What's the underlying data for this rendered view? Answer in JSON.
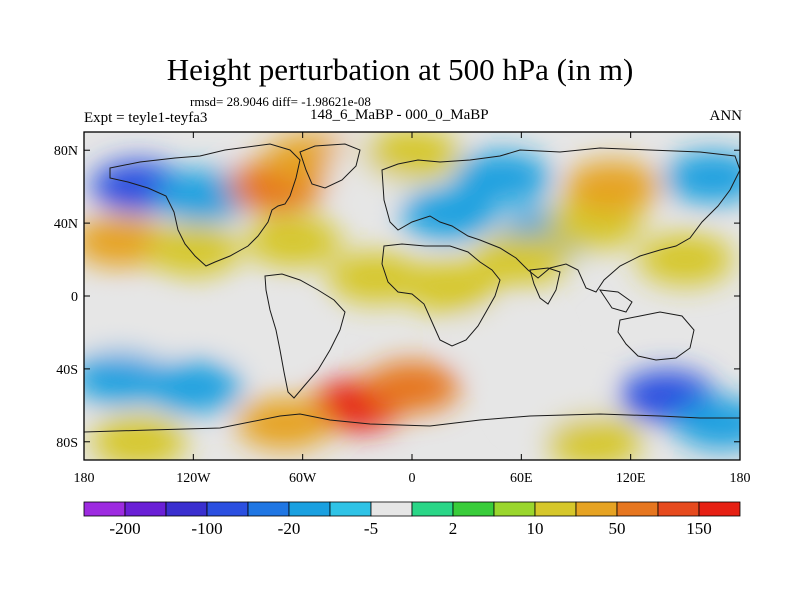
{
  "chart_data": {
    "type": "contour_map",
    "title": "Height perturbation at 500 hPa (in m)",
    "stats_line": "rmsd= 28.9046 diff= -1.98621e-08",
    "left_label": "Expt = teyle1-teyfa3",
    "center_label": "148_6_MaBP - 000_0_MaBP",
    "right_label": "ANN",
    "x_range": [
      -180,
      180
    ],
    "y_range": [
      -90,
      90
    ],
    "x_ticks": [
      {
        "value": -180,
        "label": "180"
      },
      {
        "value": -120,
        "label": "120W"
      },
      {
        "value": -60,
        "label": "60W"
      },
      {
        "value": 0,
        "label": "0"
      },
      {
        "value": 60,
        "label": "60E"
      },
      {
        "value": 120,
        "label": "120E"
      },
      {
        "value": 180,
        "label": "180"
      }
    ],
    "y_ticks": [
      {
        "value": 80,
        "label": "80N"
      },
      {
        "value": 40,
        "label": "40N"
      },
      {
        "value": 0,
        "label": "0"
      },
      {
        "value": -40,
        "label": "40S"
      },
      {
        "value": -80,
        "label": "80S"
      }
    ],
    "colorbar": {
      "colors": [
        "#9d2be0",
        "#6a1fd6",
        "#3a2fcf",
        "#2b4fe0",
        "#1f76e3",
        "#1aa0e0",
        "#2fc3e6",
        "#e6e6e6",
        "#2ad687",
        "#39cc3a",
        "#9ad62d",
        "#d6c72b",
        "#e6a323",
        "#e6761f",
        "#e64a1e",
        "#e62013"
      ],
      "tick_labels": [
        {
          "after_box": 1,
          "label": "-200"
        },
        {
          "after_box": 3,
          "label": "-100"
        },
        {
          "after_box": 5,
          "label": "-20"
        },
        {
          "after_box": 7,
          "label": "-5"
        },
        {
          "after_box": 9,
          "label": "2"
        },
        {
          "after_box": 11,
          "label": "10"
        },
        {
          "after_box": 13,
          "label": "50"
        },
        {
          "after_box": 15,
          "label": "150"
        }
      ]
    },
    "blobs": [
      {
        "lon": -150,
        "lat": 60,
        "value": -100
      },
      {
        "lon": -115,
        "lat": 55,
        "value": -20
      },
      {
        "lon": -160,
        "lat": 30,
        "value": 20
      },
      {
        "lon": -120,
        "lat": 25,
        "value": 10
      },
      {
        "lon": -75,
        "lat": 60,
        "value": 50
      },
      {
        "lon": -55,
        "lat": 75,
        "value": 20
      },
      {
        "lon": -65,
        "lat": 30,
        "value": 10
      },
      {
        "lon": -20,
        "lat": 70,
        "value": -5
      },
      {
        "lon": 0,
        "lat": 78,
        "value": 10
      },
      {
        "lon": 20,
        "lat": 45,
        "value": -20
      },
      {
        "lon": 50,
        "lat": 65,
        "value": -20
      },
      {
        "lon": 75,
        "lat": 35,
        "value": -20
      },
      {
        "lon": 100,
        "lat": 40,
        "value": 10
      },
      {
        "lon": 110,
        "lat": 60,
        "value": 20
      },
      {
        "lon": 165,
        "lat": 65,
        "value": -20
      },
      {
        "lon": 150,
        "lat": 20,
        "value": 10
      },
      {
        "lon": -20,
        "lat": 10,
        "value": 10
      },
      {
        "lon": 20,
        "lat": 5,
        "value": 10
      },
      {
        "lon": 60,
        "lat": 20,
        "value": 10
      },
      {
        "lon": -150,
        "lat": -20,
        "value": -5
      },
      {
        "lon": -120,
        "lat": -50,
        "value": -20
      },
      {
        "lon": -160,
        "lat": -45,
        "value": -20
      },
      {
        "lon": -80,
        "lat": -20,
        "value": -5
      },
      {
        "lon": -30,
        "lat": -60,
        "value": 150
      },
      {
        "lon": 0,
        "lat": -50,
        "value": 50
      },
      {
        "lon": -70,
        "lat": -70,
        "value": 20
      },
      {
        "lon": 50,
        "lat": -25,
        "value": -5
      },
      {
        "lon": 80,
        "lat": -60,
        "value": -5
      },
      {
        "lon": 100,
        "lat": -80,
        "value": 10
      },
      {
        "lon": 140,
        "lat": -55,
        "value": -100
      },
      {
        "lon": 170,
        "lat": -70,
        "value": -20
      },
      {
        "lon": -150,
        "lat": -80,
        "value": 10
      }
    ]
  }
}
